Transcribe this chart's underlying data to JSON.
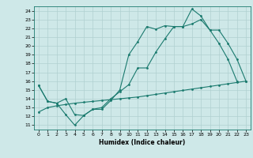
{
  "title": "",
  "xlabel": "Humidex (Indice chaleur)",
  "xlim": [
    -0.5,
    23.5
  ],
  "ylim": [
    10.5,
    24.5
  ],
  "xticks": [
    0,
    1,
    2,
    3,
    4,
    5,
    6,
    7,
    8,
    9,
    10,
    11,
    12,
    13,
    14,
    15,
    16,
    17,
    18,
    19,
    20,
    21,
    22,
    23
  ],
  "yticks": [
    11,
    12,
    13,
    14,
    15,
    16,
    17,
    18,
    19,
    20,
    21,
    22,
    23,
    24
  ],
  "bg_color": "#cee8e8",
  "grid_color": "#b0d0d0",
  "line_color": "#1a7a6e",
  "line1_x": [
    0,
    1,
    2,
    3,
    4,
    5,
    6,
    7,
    8,
    9,
    10,
    11,
    12,
    13,
    14,
    15,
    16,
    17,
    18,
    19,
    20,
    21,
    22
  ],
  "line1_y": [
    15.5,
    13.7,
    13.5,
    12.2,
    11.0,
    12.1,
    12.8,
    13.0,
    14.0,
    14.8,
    15.6,
    17.5,
    17.5,
    19.3,
    20.8,
    22.2,
    22.2,
    22.5,
    23.0,
    21.8,
    20.3,
    18.5,
    16.0
  ],
  "line2_x": [
    0,
    1,
    2,
    3,
    4,
    5,
    6,
    7,
    8,
    9,
    10,
    11,
    12,
    13,
    14,
    15,
    16,
    17,
    18,
    19,
    20,
    21,
    22,
    23
  ],
  "line2_y": [
    15.5,
    13.7,
    13.5,
    14.0,
    12.2,
    12.1,
    12.8,
    12.8,
    13.8,
    15.0,
    19.0,
    20.5,
    22.2,
    21.9,
    22.3,
    22.2,
    22.2,
    24.2,
    23.4,
    21.8,
    21.8,
    20.3,
    18.5,
    16.0
  ],
  "line3_x": [
    0,
    1,
    2,
    3,
    4,
    5,
    6,
    7,
    8,
    9,
    10,
    11,
    12,
    13,
    14,
    15,
    16,
    17,
    18,
    19,
    20,
    21,
    22,
    23
  ],
  "line3_y": [
    12.5,
    13.0,
    13.2,
    13.35,
    13.5,
    13.6,
    13.7,
    13.8,
    13.9,
    14.0,
    14.1,
    14.2,
    14.35,
    14.5,
    14.65,
    14.8,
    14.95,
    15.1,
    15.25,
    15.4,
    15.55,
    15.7,
    15.85,
    16.0
  ]
}
